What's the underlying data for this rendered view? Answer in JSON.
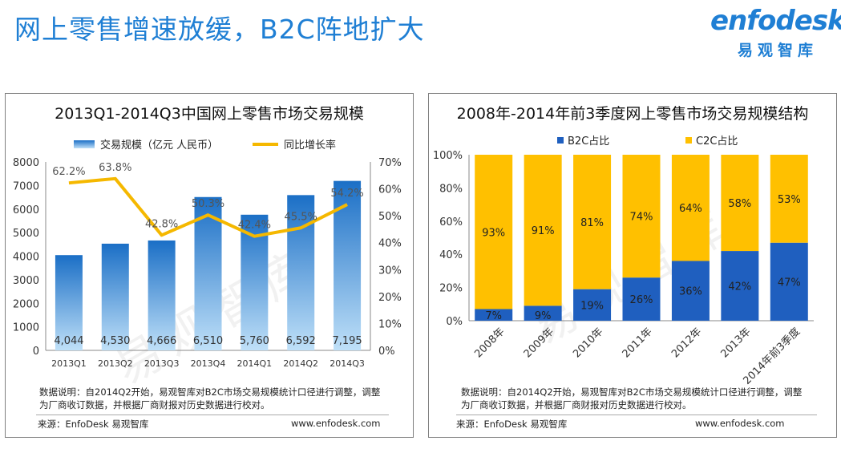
{
  "header": {
    "title": "网上零售增速放缓，B2C阵地扩大",
    "logo_en": "enfodesk",
    "logo_cn": "易观智库"
  },
  "watermark": "易观智库",
  "colors": {
    "accent": "#1f7fd4",
    "bar_blue": "#2e86d6",
    "line_orange": "#f5b800",
    "b2c": "#1f5fbf",
    "c2c": "#ffc000"
  },
  "left_panel": {
    "note": "数据说明：自2014Q2开始，易观智库对B2C市场交易规模统计口径进行调整，调整为厂商收订数据，并根据厂商财报对历史数据进行校对。",
    "note_lines": [
      "数据说明：自2014Q2开始，易观智库对B2C市场交易规模统计口径进行调整，调整",
      "为厂商收订数据，并根据厂商财报对历史数据进行校对。"
    ],
    "source": "来源：EnfoDesk 易观智库",
    "website": "www.enfodesk.com"
  },
  "right_panel": {
    "note_lines": [
      "数据说明：自2014Q2开始，易观智库对B2C市场交易规模统计口径进行调整，调整",
      "为厂商收订数据，并根据厂商财报对历史数据进行校对。"
    ],
    "source": "来源：EnfoDesk 易观智库",
    "website": "www.enfodesk.com"
  },
  "chart_data": [
    {
      "type": "bar",
      "title": "2013Q1-2014Q3中国网上零售市场交易规模",
      "categories": [
        "2013Q1",
        "2013Q2",
        "2013Q3",
        "2013Q4",
        "2014Q1",
        "2014Q2",
        "2014Q3"
      ],
      "series": [
        {
          "name": "交易规模（亿元 人民币）",
          "type": "bar",
          "axis": "left",
          "values": [
            4044,
            4530,
            4666,
            6510,
            5760,
            6592,
            7195
          ],
          "labels": [
            "4,044",
            "4,530",
            "4,666",
            "6,510",
            "5,760",
            "6,592",
            "7,195"
          ]
        },
        {
          "name": "同比增长率",
          "type": "line",
          "axis": "right",
          "values": [
            62.2,
            63.8,
            42.8,
            50.3,
            42.4,
            45.5,
            54.2
          ],
          "labels": [
            "62.2%",
            "63.8%",
            "42.8%",
            "50.3%",
            "42.4%",
            "45.5%",
            "54.2%"
          ]
        }
      ],
      "y_left": {
        "range": [
          0,
          8000
        ],
        "ticks": [
          "0",
          "1000",
          "2000",
          "3000",
          "4000",
          "5000",
          "6000",
          "7000",
          "8000"
        ]
      },
      "y_right": {
        "range": [
          0,
          70
        ],
        "ticks": [
          "0%",
          "10%",
          "20%",
          "30%",
          "40%",
          "50%",
          "60%",
          "70%"
        ]
      },
      "legend_position": "top",
      "grid": false
    },
    {
      "type": "bar",
      "stacked": "percent",
      "title": "2008年-2014年前3季度网上零售市场交易规模结构",
      "categories": [
        "2008年",
        "2009年",
        "2010年",
        "2011年",
        "2012年",
        "2013年",
        "2014年前3季度"
      ],
      "series": [
        {
          "name": "B2C占比",
          "values": [
            7,
            9,
            19,
            26,
            36,
            42,
            47
          ],
          "labels": [
            "7%",
            "9%",
            "19%",
            "26%",
            "36%",
            "42%",
            "47%"
          ]
        },
        {
          "name": "C2C占比",
          "values": [
            93,
            91,
            81,
            74,
            64,
            58,
            53
          ],
          "labels": [
            "93%",
            "91%",
            "81%",
            "74%",
            "64%",
            "58%",
            "53%"
          ]
        }
      ],
      "y": {
        "range": [
          0,
          100
        ],
        "ticks": [
          "0%",
          "20%",
          "40%",
          "60%",
          "80%",
          "100%"
        ]
      },
      "legend_position": "top",
      "grid": false
    }
  ]
}
